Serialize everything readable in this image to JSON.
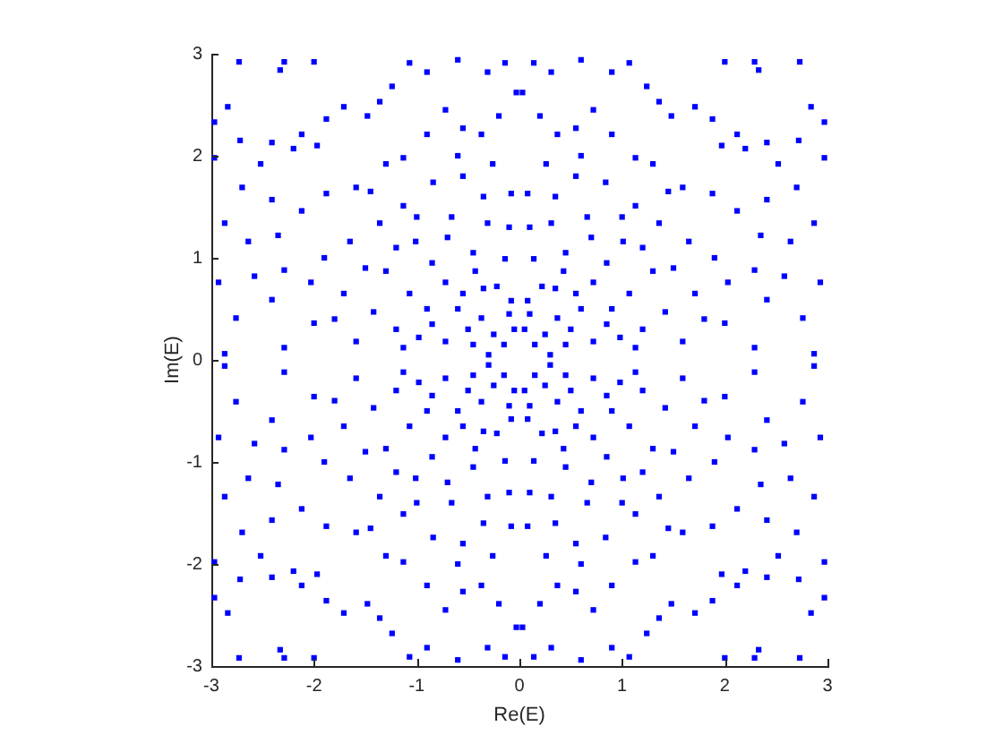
{
  "chart_data": {
    "type": "scatter",
    "xlabel": "Re(E)",
    "ylabel": "Im(E)",
    "color": "#0000ff",
    "marker": "square",
    "xlim": [
      -3,
      3
    ],
    "ylim": [
      -3,
      3
    ],
    "xticks": [
      -3,
      -2,
      -1,
      0,
      1,
      2,
      3
    ],
    "yticks": [
      -3,
      -2,
      -1,
      0,
      1,
      2,
      3
    ],
    "x": [
      2.73,
      2.29,
      2,
      2.33,
      2.97,
      2.84,
      2.97,
      2.72,
      2.52,
      2.41,
      2.2,
      2.12,
      1.97,
      1.88,
      1.71,
      1.48,
      1.36,
      1.24,
      1.07,
      0.9,
      0.6,
      0.31,
      0.14,
      0.03,
      0.2,
      0.37,
      0.55,
      0.72,
      0.9,
      1.13,
      1.3,
      1.59,
      1.88,
      2.12,
      2.41,
      2.7,
      2.87,
      2.64,
      2.35,
      2.03,
      2.29,
      2.58,
      2.93,
      2.76,
      2.41,
      2,
      1.71,
      1.65,
      1.36,
      1.13,
      0.84,
      0.55,
      0.26,
      0.08,
      0.31,
      0.66,
      1.01,
      1.3,
      1.42,
      1.07,
      0.72,
      0.43,
      0.14,
      0.08,
      0.37,
      0.72,
      1.13,
      1.59,
      2.29,
      2.87,
      0.15,
      0.3,
      0.25,
      0.05,
      0.5,
      0.6,
      0.85,
      0.9,
      1.2,
      0.22,
      0.45,
      0.85,
      1.2,
      1.5,
      1.8,
      1.9,
      0.45,
      0.1,
      0.35,
      0.7,
      1,
      0.6,
      1.45,
      0.1,
      0.35,
      0.55,
      0.98,
      -2.73,
      -2.29,
      -2,
      -2.33,
      -2.97,
      -2.84,
      -2.97,
      -2.72,
      -2.52,
      -2.41,
      -2.2,
      -2.12,
      -1.97,
      -1.88,
      -1.71,
      -1.48,
      -1.36,
      -1.24,
      -1.07,
      -0.9,
      -0.6,
      -0.31,
      -0.14,
      -0.03,
      -0.2,
      -0.37,
      -0.55,
      -0.72,
      -0.9,
      -1.13,
      -1.3,
      -1.59,
      -1.88,
      -2.12,
      -2.41,
      -2.7,
      -2.87,
      -2.64,
      -2.35,
      -2.03,
      -2.29,
      -2.58,
      -2.93,
      -2.76,
      -2.41,
      -2,
      -1.71,
      -1.65,
      -1.36,
      -1.13,
      -0.84,
      -0.55,
      -0.26,
      -0.08,
      -0.31,
      -0.66,
      -1.01,
      -1.3,
      -1.42,
      -1.07,
      -0.72,
      -0.43,
      -0.14,
      -0.08,
      -0.37,
      -0.72,
      -1.13,
      -1.59,
      -2.29,
      -2.87,
      -0.15,
      -0.3,
      -0.25,
      -0.05,
      -0.5,
      -0.6,
      -0.85,
      -0.9,
      -1.2,
      -0.22,
      -0.45,
      -0.85,
      -1.2,
      -1.5,
      -1.8,
      -1.9,
      -0.45,
      -0.1,
      -0.35,
      -0.7,
      -1,
      -0.6,
      -1.45,
      -0.1,
      -0.35,
      -0.55,
      -0.98,
      -2.73,
      -2.29,
      -2,
      -2.33,
      -2.97,
      -2.84,
      -2.97,
      -2.72,
      -2.52,
      -2.41,
      -2.2,
      -2.12,
      -1.97,
      -1.88,
      -1.71,
      -1.48,
      -1.36,
      -1.24,
      -1.07,
      -0.9,
      -0.6,
      -0.31,
      -0.14,
      -0.03,
      -0.2,
      -0.37,
      -0.55,
      -0.72,
      -0.9,
      -1.13,
      -1.3,
      -1.59,
      -1.88,
      -2.12,
      -2.41,
      -2.7,
      -2.87,
      -2.64,
      -2.35,
      -2.03,
      -2.29,
      -2.58,
      -2.93,
      -2.76,
      -2.41,
      -2,
      -1.71,
      -1.65,
      -1.36,
      -1.13,
      -0.84,
      -0.55,
      -0.26,
      -0.08,
      -0.31,
      -0.66,
      -1.01,
      -1.3,
      -1.42,
      -1.07,
      -0.72,
      -0.43,
      -0.14,
      -0.08,
      -0.37,
      -0.72,
      -1.13,
      -1.59,
      -2.29,
      -2.87,
      -0.15,
      -0.3,
      -0.25,
      -0.05,
      -0.5,
      -0.6,
      -0.85,
      -0.9,
      -1.2,
      -0.22,
      -0.45,
      -0.85,
      -1.2,
      -1.5,
      -1.8,
      -1.9,
      -0.45,
      -0.1,
      -0.35,
      -0.7,
      -1,
      -0.6,
      -1.45,
      -0.1,
      -0.35,
      -0.55,
      -0.98,
      2.73,
      2.29,
      2,
      2.33,
      2.97,
      2.84,
      2.97,
      2.72,
      2.52,
      2.41,
      2.2,
      2.12,
      1.97,
      1.88,
      1.71,
      1.48,
      1.36,
      1.24,
      1.07,
      0.9,
      0.6,
      0.31,
      0.14,
      0.03,
      0.2,
      0.37,
      0.55,
      0.72,
      0.9,
      1.13,
      1.3,
      1.59,
      1.88,
      2.12,
      2.41,
      2.7,
      2.87,
      2.64,
      2.35,
      2.03,
      2.29,
      2.58,
      2.93,
      2.76,
      2.41,
      2,
      1.71,
      1.65,
      1.36,
      1.13,
      0.84,
      0.55,
      0.26,
      0.08,
      0.31,
      0.66,
      1.01,
      1.3,
      1.42,
      1.07,
      0.72,
      0.43,
      0.14,
      0.08,
      0.37,
      0.72,
      1.13,
      1.59,
      2.29,
      2.87,
      0.15,
      0.3,
      0.25,
      0.05,
      0.5,
      0.6,
      0.85,
      0.9,
      1.2,
      0.22,
      0.45,
      0.85,
      1.2,
      1.5,
      1.8,
      1.9,
      0.45,
      0.1,
      0.35,
      0.7,
      1,
      0.6,
      1.45,
      0.1,
      0.35,
      0.55,
      0.98
    ],
    "values": [
      2.92,
      2.92,
      2.92,
      2.84,
      2.33,
      2.48,
      1.98,
      2.15,
      1.92,
      2.13,
      2.07,
      2.21,
      2.1,
      2.36,
      2.48,
      2.39,
      2.53,
      2.68,
      2.91,
      2.82,
      2.94,
      2.82,
      2.91,
      2.62,
      2.39,
      2.21,
      2.27,
      2.45,
      2.21,
      1.98,
      1.92,
      1.69,
      1.63,
      1.46,
      1.57,
      1.69,
      1.34,
      1.16,
      1.22,
      0.76,
      0.88,
      0.82,
      0.76,
      0.41,
      0.59,
      0.36,
      0.65,
      1.16,
      1.34,
      1.51,
      1.74,
      1.8,
      1.92,
      1.63,
      1.34,
      1.4,
      1.16,
      0.87,
      0.47,
      0.65,
      0.76,
      0.87,
      0.99,
      0.58,
      0.41,
      0.18,
      0.12,
      0.18,
      0.12,
      0.06,
      0.15,
      0.05,
      0.25,
      0.3,
      0.3,
      0.5,
      0.35,
      0.5,
      0.3,
      0.72,
      1.05,
      0.95,
      1.1,
      0.9,
      0.4,
      1,
      0.15,
      1.3,
      1.6,
      1.2,
      1.4,
      2,
      1.65,
      0.45,
      0.7,
      0.65,
      0.22,
      2.92,
      2.92,
      2.92,
      2.84,
      2.33,
      2.48,
      1.98,
      2.15,
      1.92,
      2.13,
      2.07,
      2.21,
      2.1,
      2.36,
      2.48,
      2.39,
      2.53,
      2.68,
      2.91,
      2.82,
      2.94,
      2.82,
      2.91,
      2.62,
      2.39,
      2.21,
      2.27,
      2.45,
      2.21,
      1.98,
      1.92,
      1.69,
      1.63,
      1.46,
      1.57,
      1.69,
      1.34,
      1.16,
      1.22,
      0.76,
      0.88,
      0.82,
      0.76,
      0.41,
      0.59,
      0.36,
      0.65,
      1.16,
      1.34,
      1.51,
      1.74,
      1.8,
      1.92,
      1.63,
      1.34,
      1.4,
      1.16,
      0.87,
      0.47,
      0.65,
      0.76,
      0.87,
      0.99,
      0.58,
      0.41,
      0.18,
      0.12,
      0.18,
      0.12,
      0.06,
      0.15,
      0.05,
      0.25,
      0.3,
      0.3,
      0.5,
      0.35,
      0.5,
      0.3,
      0.72,
      1.05,
      0.95,
      1.1,
      0.9,
      0.4,
      1,
      0.15,
      1.3,
      1.6,
      1.2,
      1.4,
      2,
      1.65,
      0.45,
      0.7,
      0.65,
      0.22,
      -2.92,
      -2.92,
      -2.92,
      -2.84,
      -2.33,
      -2.48,
      -1.98,
      -2.15,
      -1.92,
      -2.13,
      -2.07,
      -2.21,
      -2.1,
      -2.36,
      -2.48,
      -2.39,
      -2.53,
      -2.68,
      -2.91,
      -2.82,
      -2.94,
      -2.82,
      -2.91,
      -2.62,
      -2.39,
      -2.21,
      -2.27,
      -2.45,
      -2.21,
      -1.98,
      -1.92,
      -1.69,
      -1.63,
      -1.46,
      -1.57,
      -1.69,
      -1.34,
      -1.16,
      -1.22,
      -0.76,
      -0.88,
      -0.82,
      -0.76,
      -0.41,
      -0.59,
      -0.36,
      -0.65,
      -1.16,
      -1.34,
      -1.51,
      -1.74,
      -1.8,
      -1.92,
      -1.63,
      -1.34,
      -1.4,
      -1.16,
      -0.87,
      -0.47,
      -0.65,
      -0.76,
      -0.87,
      -0.99,
      -0.58,
      -0.41,
      -0.18,
      -0.12,
      -0.18,
      -0.12,
      -0.06,
      -0.15,
      -0.05,
      -0.25,
      -0.3,
      -0.3,
      -0.5,
      -0.35,
      -0.5,
      -0.3,
      -0.72,
      -1.05,
      -0.95,
      -1.1,
      -0.9,
      -0.4,
      -1,
      -0.15,
      -1.3,
      -1.6,
      -1.2,
      -1.4,
      -2,
      -1.65,
      -0.45,
      -0.7,
      -0.65,
      -0.22,
      -2.92,
      -2.92,
      -2.92,
      -2.84,
      -2.33,
      -2.48,
      -1.98,
      -2.15,
      -1.92,
      -2.13,
      -2.07,
      -2.21,
      -2.1,
      -2.36,
      -2.48,
      -2.39,
      -2.53,
      -2.68,
      -2.91,
      -2.82,
      -2.94,
      -2.82,
      -2.91,
      -2.62,
      -2.39,
      -2.21,
      -2.27,
      -2.45,
      -2.21,
      -1.98,
      -1.92,
      -1.69,
      -1.63,
      -1.46,
      -1.57,
      -1.69,
      -1.34,
      -1.16,
      -1.22,
      -0.76,
      -0.88,
      -0.82,
      -0.76,
      -0.41,
      -0.59,
      -0.36,
      -0.65,
      -1.16,
      -1.34,
      -1.51,
      -1.74,
      -1.8,
      -1.92,
      -1.63,
      -1.34,
      -1.4,
      -1.16,
      -0.87,
      -0.47,
      -0.65,
      -0.76,
      -0.87,
      -0.99,
      -0.58,
      -0.41,
      -0.18,
      -0.12,
      -0.18,
      -0.12,
      -0.06,
      -0.15,
      -0.05,
      -0.25,
      -0.3,
      -0.3,
      -0.5,
      -0.35,
      -0.5,
      -0.3,
      -0.72,
      -1.05,
      -0.95,
      -1.1,
      -0.9,
      -0.4,
      -1,
      -0.15,
      -1.3,
      -1.6,
      -1.2,
      -1.4,
      -2,
      -1.65,
      -0.45,
      -0.7,
      -0.65,
      -0.22
    ]
  }
}
